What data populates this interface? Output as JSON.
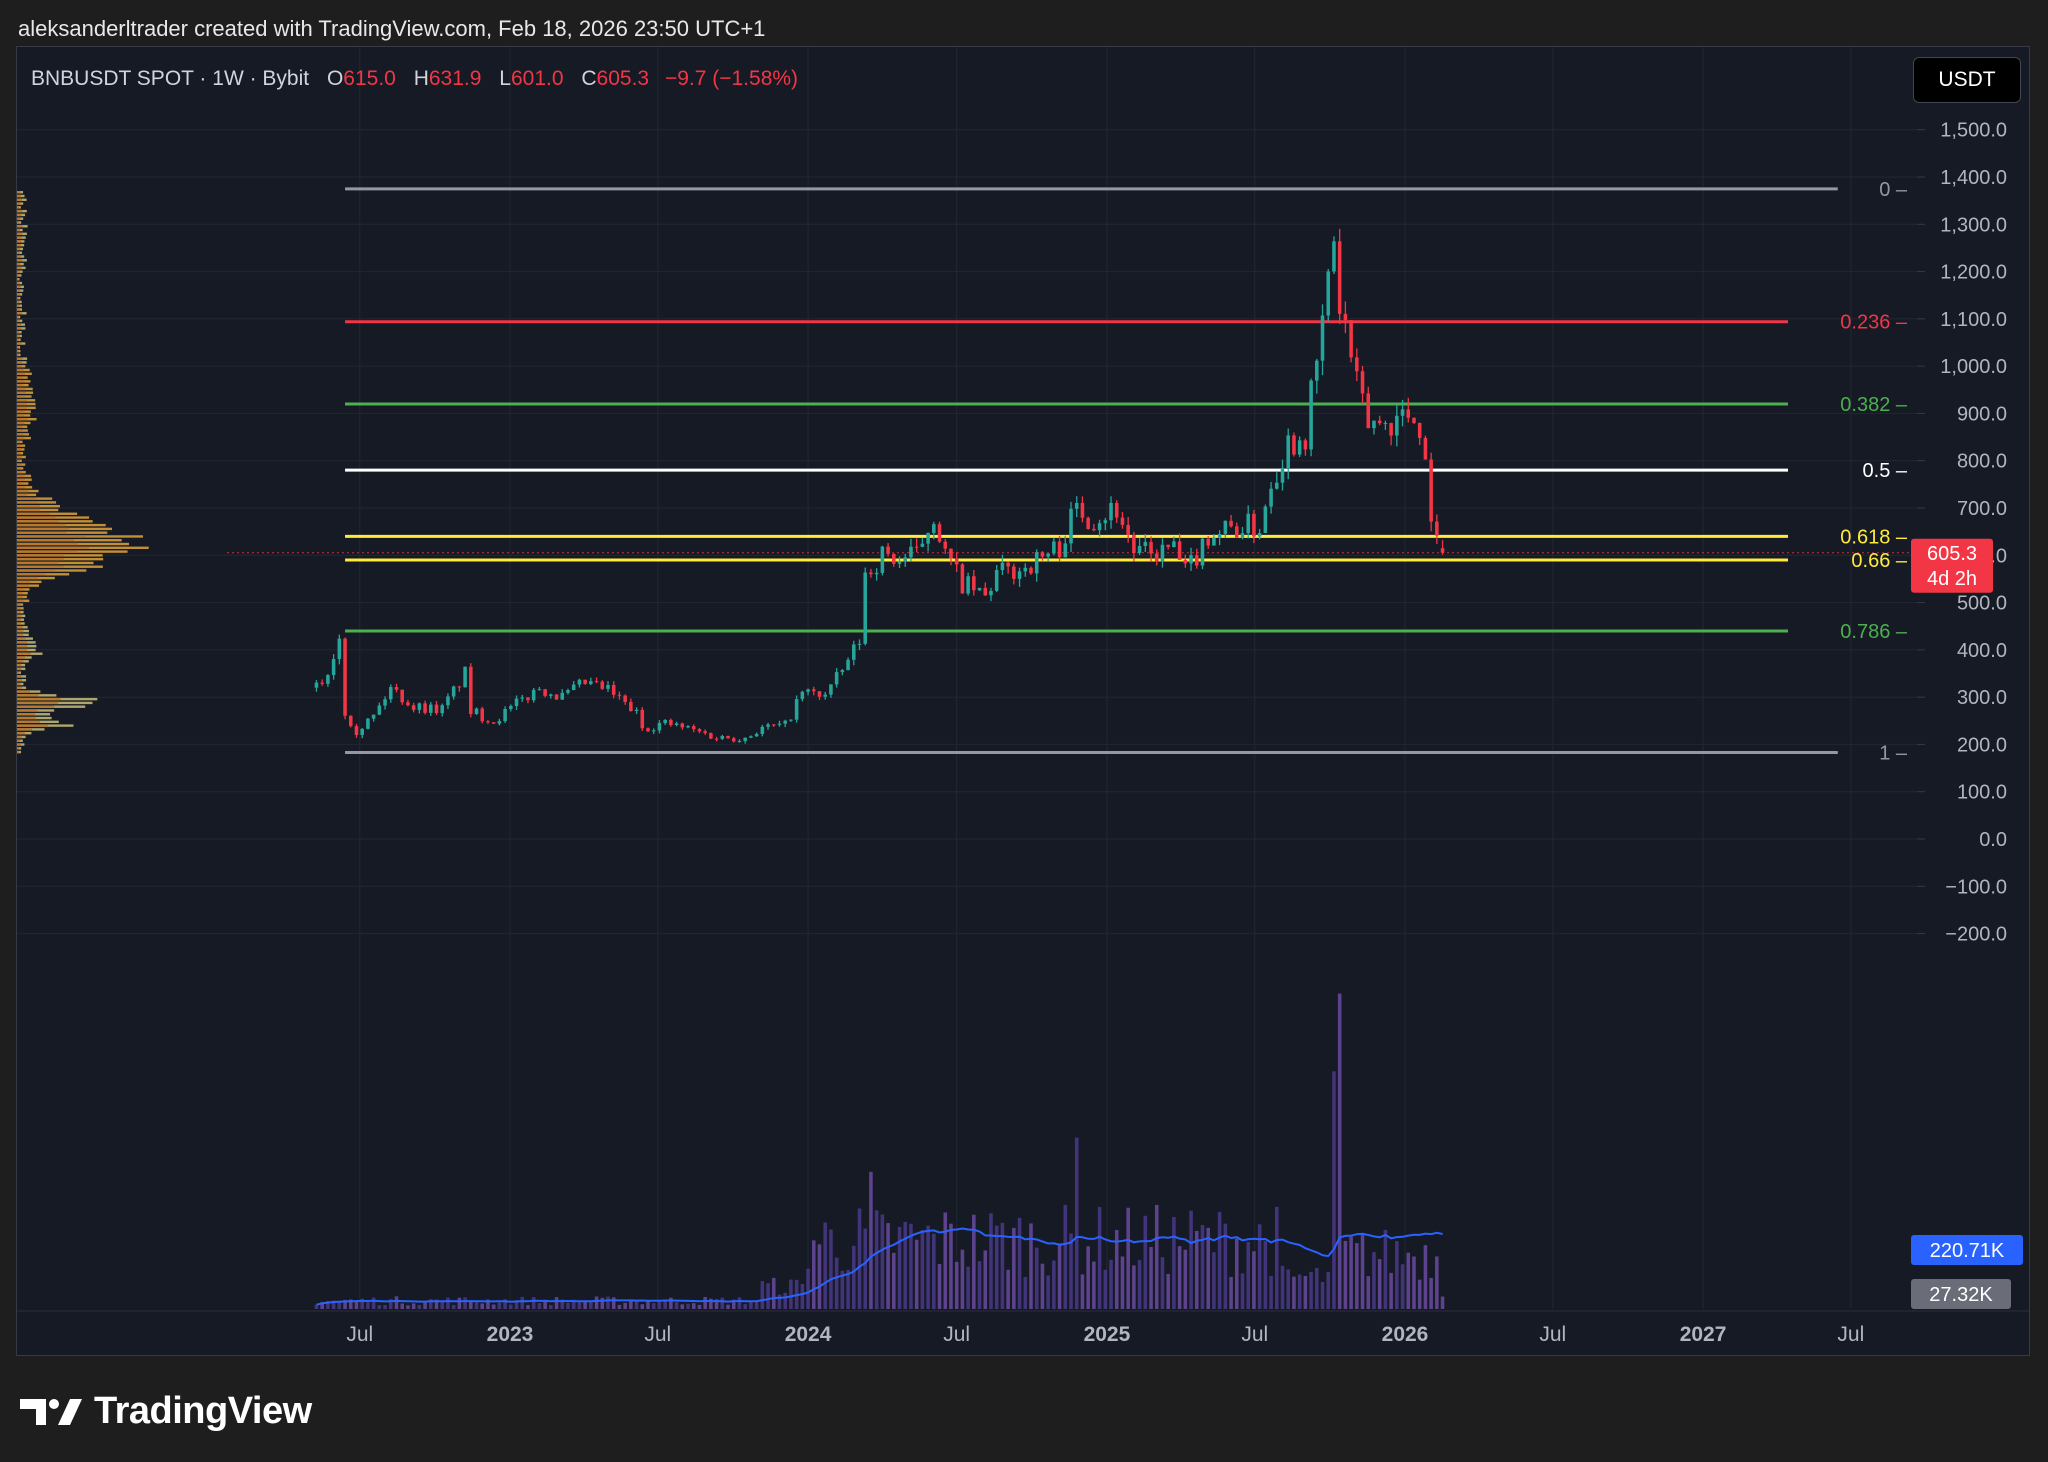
{
  "attribution": "aleksanderltrader created with TradingView.com, Feb 18, 2026 23:50 UTC+1",
  "symbol": {
    "title": "BNBUSDT SPOT · 1W · Bybit",
    "o_key": "O",
    "o_val": "615.0",
    "h_key": "H",
    "h_val": "631.9",
    "l_key": "L",
    "l_val": "601.0",
    "c_key": "C",
    "c_val": "605.3",
    "change": "−9.7 (−1.58%)"
  },
  "currency_button": "USDT",
  "brand": {
    "name": "TradingView"
  },
  "colors": {
    "background": "#161a25",
    "up": "#26a69a",
    "down": "#f23645",
    "volume_ma": "#2962ff",
    "volume_bar": "#5b3aa8",
    "price_tag": "#f23645",
    "volume_tag": "#2962ff",
    "volume_tag2": "#6a6d78"
  },
  "chart_data": {
    "type": "candlestick",
    "timeframe": "1W",
    "y_axis": {
      "ticks": [
        "1,500.0",
        "1,400.0",
        "1,300.0",
        "1,200.0",
        "1,100.0",
        "1,000.0",
        "900.0",
        "800.0",
        "700.0",
        "600.0",
        "500.0",
        "400.0",
        "300.0",
        "200.0",
        "100.0",
        "0.0",
        "−100.0",
        "−200.0"
      ],
      "tick_values": [
        1500,
        1400,
        1300,
        1200,
        1100,
        1000,
        900,
        800,
        700,
        600,
        500,
        400,
        300,
        200,
        100,
        0,
        -100,
        -200
      ],
      "range": [
        -300,
        1600
      ]
    },
    "x_axis": {
      "labels": [
        {
          "text": "Jul",
          "date": "2022-07-01",
          "bold": false
        },
        {
          "text": "2023",
          "date": "2023-01-01",
          "bold": true
        },
        {
          "text": "Jul",
          "date": "2023-07-01",
          "bold": false
        },
        {
          "text": "2024",
          "date": "2024-01-01",
          "bold": true
        },
        {
          "text": "Jul",
          "date": "2024-07-01",
          "bold": false
        },
        {
          "text": "2025",
          "date": "2025-01-01",
          "bold": true
        },
        {
          "text": "Jul",
          "date": "2025-07-01",
          "bold": false
        },
        {
          "text": "2026",
          "date": "2026-01-01",
          "bold": true
        },
        {
          "text": "Jul",
          "date": "2026-07-01",
          "bold": false
        },
        {
          "text": "2027",
          "date": "2027-01-01",
          "bold": true
        },
        {
          "text": "Jul",
          "date": "2027-07-01",
          "bold": false
        }
      ],
      "range": [
        "2022-01-01",
        "2027-08-15"
      ]
    },
    "fib_levels": [
      {
        "label": "0",
        "price": 1375,
        "color": "#9598a1",
        "start": "2022-06-13",
        "end": "2027-06-15"
      },
      {
        "label": "0.236",
        "price": 1094,
        "color": "#f23645",
        "start": "2022-06-13",
        "end": "2027-04-15"
      },
      {
        "label": "0.382",
        "price": 920,
        "color": "#4caf50",
        "start": "2022-06-13",
        "end": "2027-04-15"
      },
      {
        "label": "0.5",
        "price": 780,
        "color": "#ffffff",
        "start": "2022-06-13",
        "end": "2027-04-15"
      },
      {
        "label": "0.618",
        "price": 640,
        "color": "#ffeb3b",
        "start": "2022-06-13",
        "end": "2027-04-15"
      },
      {
        "label": "0.66",
        "price": 590,
        "color": "#ffeb3b",
        "start": "2022-06-13",
        "end": "2027-04-15"
      },
      {
        "label": "0.786",
        "price": 440,
        "color": "#4caf50",
        "start": "2022-06-13",
        "end": "2027-04-15"
      },
      {
        "label": "1",
        "price": 183,
        "color": "#9598a1",
        "start": "2022-06-13",
        "end": "2027-06-15"
      }
    ],
    "price_path": [
      [
        "2022-05-09",
        320
      ],
      [
        "2022-05-23",
        350
      ],
      [
        "2022-06-06",
        430
      ],
      [
        "2022-06-13",
        270
      ],
      [
        "2022-06-27",
        230
      ],
      [
        "2022-07-18",
        260
      ],
      [
        "2022-08-08",
        320
      ],
      [
        "2022-09-05",
        280
      ],
      [
        "2022-10-10",
        275
      ],
      [
        "2022-11-07",
        350
      ],
      [
        "2022-11-14",
        270
      ],
      [
        "2022-12-12",
        250
      ],
      [
        "2023-01-09",
        285
      ],
      [
        "2023-02-06",
        320
      ],
      [
        "2023-03-06",
        300
      ],
      [
        "2023-04-03",
        330
      ],
      [
        "2023-05-01",
        315
      ],
      [
        "2023-06-05",
        265
      ],
      [
        "2023-06-12",
        235
      ],
      [
        "2023-07-10",
        245
      ],
      [
        "2023-08-14",
        230
      ],
      [
        "2023-09-11",
        215
      ],
      [
        "2023-10-16",
        215
      ],
      [
        "2023-11-06",
        235
      ],
      [
        "2023-12-04",
        240
      ],
      [
        "2023-12-25",
        310
      ],
      [
        "2024-01-22",
        305
      ],
      [
        "2024-02-12",
        355
      ],
      [
        "2024-03-04",
        420
      ],
      [
        "2024-03-11",
        560
      ],
      [
        "2024-04-01",
        600
      ],
      [
        "2024-04-22",
        590
      ],
      [
        "2024-05-13",
        600
      ],
      [
        "2024-06-03",
        690
      ],
      [
        "2024-06-17",
        600
      ],
      [
        "2024-07-08",
        540
      ],
      [
        "2024-08-05",
        510
      ],
      [
        "2024-08-19",
        560
      ],
      [
        "2024-09-16",
        570
      ],
      [
        "2024-10-14",
        595
      ],
      [
        "2024-11-04",
        620
      ],
      [
        "2024-11-25",
        700
      ],
      [
        "2024-12-16",
        680
      ],
      [
        "2025-01-13",
        700
      ],
      [
        "2025-02-03",
        610
      ],
      [
        "2025-02-24",
        600
      ],
      [
        "2025-03-24",
        615
      ],
      [
        "2025-04-07",
        560
      ],
      [
        "2025-05-05",
        645
      ],
      [
        "2025-06-09",
        660
      ],
      [
        "2025-07-07",
        660
      ],
      [
        "2025-07-21",
        760
      ],
      [
        "2025-08-11",
        840
      ],
      [
        "2025-09-01",
        860
      ],
      [
        "2025-09-15",
        1000
      ],
      [
        "2025-10-06",
        1270
      ],
      [
        "2025-10-13",
        1120
      ],
      [
        "2025-10-20",
        1080
      ],
      [
        "2025-11-03",
        950
      ],
      [
        "2025-11-17",
        880
      ],
      [
        "2025-12-08",
        880
      ],
      [
        "2026-01-05",
        900
      ],
      [
        "2026-01-19",
        880
      ],
      [
        "2026-02-02",
        700
      ],
      [
        "2026-02-09",
        620
      ],
      [
        "2026-02-16",
        605
      ]
    ],
    "last_price": {
      "value": 605.3,
      "label": "605.3",
      "countdown": "4d 2h"
    },
    "volume": {
      "ma_label": "220.71K",
      "last_label": "27.32K",
      "panel_range_k": [
        0,
        700
      ]
    },
    "volume_profile": {
      "poc_price": 610
    }
  }
}
